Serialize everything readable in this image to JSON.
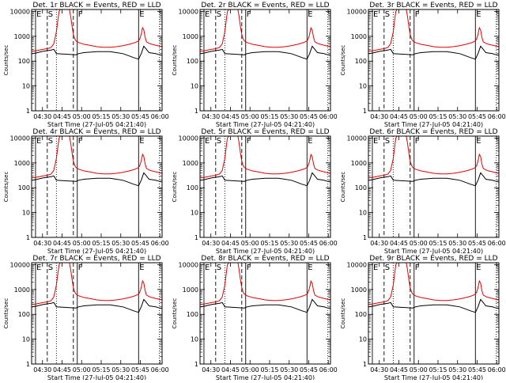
{
  "chart_data": {
    "type": "line",
    "x_ticks": [
      "04:30",
      "04:45",
      "05:00",
      "05:15",
      "05:30",
      "05:45",
      "06:00"
    ],
    "y_ticks": [
      "1",
      "10",
      "100",
      "1000",
      "10000"
    ],
    "ylabel": "Counts/sec",
    "xlabel": "Start Time (27-Jul-05 04:21:40)",
    "y_scale": "log",
    "ylim": [
      1,
      12000
    ],
    "time_range_minutes": [
      0,
      100
    ],
    "tick_minutes": [
      8.33,
      23.33,
      38.33,
      53.33,
      68.33,
      83.33,
      98.33
    ],
    "vertical_markers": [
      {
        "label": "E",
        "minute": 3,
        "style": "solid"
      },
      {
        "label": "S",
        "minute": 12,
        "style": "dashed"
      },
      {
        "label": "",
        "minute": 19,
        "style": "dotted"
      },
      {
        "label": "",
        "minute": 32,
        "style": "dashed"
      },
      {
        "label": "F",
        "minute": 35,
        "style": "solid"
      },
      {
        "label": "E",
        "minute": 82,
        "style": "solid"
      },
      {
        "label": "",
        "minute": 98,
        "style": "dotted"
      }
    ],
    "series_colors": {
      "events": "#000000",
      "lld": "#e00000"
    },
    "lld": {
      "x": [
        0,
        3,
        6,
        9,
        11,
        13,
        15,
        17,
        19,
        20,
        21,
        22,
        23,
        24,
        25,
        26,
        27,
        28,
        29,
        30,
        31,
        32,
        33,
        34,
        35,
        36,
        38,
        40,
        45,
        50,
        55,
        60,
        65,
        70,
        75,
        78,
        80,
        82,
        83,
        84,
        85,
        86,
        87,
        88,
        90,
        92,
        95,
        98,
        100
      ],
      "y": [
        250,
        260,
        280,
        300,
        310,
        330,
        360,
        500,
        1500,
        4000,
        10000,
        12000,
        12000,
        12000,
        12000,
        12000,
        12000,
        12000,
        12000,
        6000,
        2500,
        1200,
        800,
        650,
        600,
        560,
        520,
        480,
        430,
        380,
        360,
        360,
        380,
        420,
        480,
        530,
        580,
        650,
        800,
        1200,
        2200,
        1800,
        900,
        600,
        520,
        480,
        440,
        400,
        380
      ]
    },
    "events": {
      "x": [
        0,
        3,
        6,
        9,
        11,
        13,
        15,
        17,
        18,
        19,
        34,
        35,
        36,
        40,
        45,
        50,
        55,
        60,
        65,
        70,
        75,
        78,
        80,
        82,
        84,
        86,
        88,
        90,
        95,
        98,
        100
      ],
      "y": [
        200,
        210,
        230,
        250,
        260,
        270,
        280,
        300,
        250,
        200,
        180,
        190,
        200,
        220,
        230,
        240,
        240,
        240,
        220,
        200,
        160,
        140,
        130,
        120,
        200,
        400,
        300,
        220,
        200,
        180,
        170
      ]
    },
    "panels": [
      {
        "title": "Det. 1r BLACK = Events, RED = LLD"
      },
      {
        "title": "Det. 2r BLACK = Events, RED = LLD"
      },
      {
        "title": "Det. 3r BLACK = Events, RED = LLD"
      },
      {
        "title": "Det. 4r BLACK = Events, RED = LLD"
      },
      {
        "title": "Det. 5r BLACK = Events, RED = LLD"
      },
      {
        "title": "Det. 6r BLACK = Events, RED = LLD"
      },
      {
        "title": "Det. 7r BLACK = Events, RED = LLD"
      },
      {
        "title": "Det. 8r BLACK = Events, RED = LLD"
      },
      {
        "title": "Det. 9r BLACK = Events, RED = LLD"
      }
    ]
  }
}
